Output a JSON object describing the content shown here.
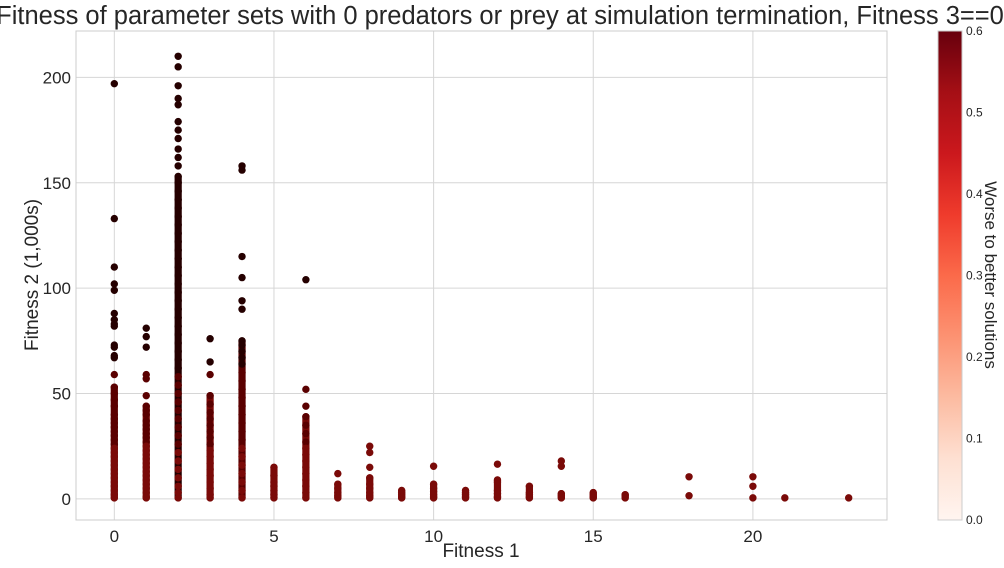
{
  "chart_data": {
    "type": "scatter",
    "title": "Fitness of parameter sets with 0 predators or prey at simulation termination, Fitness 3==0",
    "xlabel": "Fitness 1",
    "ylabel": "Fitness 2 (1,000s)",
    "xlim": [
      -1.2,
      24.2
    ],
    "ylim": [
      -10,
      222
    ],
    "xticks": [
      0,
      5,
      10,
      15,
      20
    ],
    "xtick_labels": [
      "0",
      "5",
      "10",
      "15",
      "20"
    ],
    "yticks": [
      0,
      50,
      100,
      150,
      200
    ],
    "ytick_labels": [
      "0",
      "50",
      "100",
      "150",
      "200"
    ],
    "grid": true,
    "colorbar": {
      "label": "Worse to better solutions",
      "range": [
        0.0,
        0.6
      ],
      "ticks": [
        0.0,
        0.1,
        0.2,
        0.3,
        0.4,
        0.5,
        0.6
      ],
      "tick_labels": [
        "0.0",
        "0.1",
        "0.2",
        "0.3",
        "0.4",
        "0.5",
        "0.6"
      ],
      "colormap": "Reds",
      "colors": [
        "#fff5f0",
        "#fee0d2",
        "#fcbba1",
        "#fc9272",
        "#fb6a4a",
        "#ef3b2c",
        "#cb181d",
        "#a50f15",
        "#67000d"
      ]
    },
    "point_colors": {
      "dark": "#250000",
      "mid": "#5a0000",
      "base": "#7a0a08"
    },
    "series": [
      {
        "x": 0,
        "y": [
          197,
          133,
          110,
          102,
          99,
          88,
          85,
          83,
          82,
          73,
          72,
          68,
          67,
          59,
          53,
          50,
          47,
          44,
          40,
          38,
          36,
          34,
          32,
          30,
          28,
          26,
          24,
          22,
          20,
          18,
          16,
          14,
          12,
          10,
          8,
          6,
          4,
          2,
          0.5
        ]
      },
      {
        "x": 1,
        "y": [
          81,
          77,
          72,
          59,
          57,
          49,
          44,
          42,
          40,
          37,
          35,
          33,
          31,
          29,
          27,
          25,
          23,
          21,
          19,
          17,
          15,
          13,
          11,
          9,
          7,
          5,
          3,
          1,
          0.5
        ]
      },
      {
        "x": 2,
        "y": [
          210,
          205,
          196,
          190,
          187,
          179,
          175,
          171,
          166,
          162,
          158,
          153,
          150,
          146,
          142,
          138,
          134,
          130,
          126,
          122,
          118,
          114,
          110,
          106,
          102,
          98,
          94,
          90,
          86,
          82,
          78,
          74,
          70,
          66,
          62,
          58,
          54,
          50,
          46,
          42,
          38,
          34,
          30,
          26,
          22,
          18,
          14,
          10,
          6,
          3,
          0.5
        ]
      },
      {
        "x": 3,
        "y": [
          76,
          65,
          59,
          49,
          45,
          41,
          38,
          35,
          32,
          29,
          26,
          23,
          20,
          17,
          14,
          11,
          8,
          5,
          2,
          0.5
        ]
      },
      {
        "x": 4,
        "y": [
          158,
          156,
          115,
          105,
          94,
          90,
          75,
          73,
          70,
          67,
          64,
          60,
          56,
          52,
          48,
          44,
          40,
          36,
          32,
          28,
          24,
          20,
          16,
          12,
          8,
          4,
          0.5
        ]
      },
      {
        "x": 5,
        "y": [
          15,
          11,
          8,
          6,
          4,
          2,
          0.5
        ]
      },
      {
        "x": 6,
        "y": [
          104,
          52,
          44,
          39,
          35,
          31,
          27,
          24,
          21,
          18,
          15,
          12,
          9,
          6,
          3,
          0.5
        ]
      },
      {
        "x": 7,
        "y": [
          12,
          7,
          5,
          3,
          1.5,
          0.5
        ]
      },
      {
        "x": 8,
        "y": [
          25,
          22,
          15,
          10,
          7,
          5,
          3,
          1.5,
          0.5
        ]
      },
      {
        "x": 9,
        "y": [
          4,
          3,
          2,
          1,
          0.5
        ]
      },
      {
        "x": 10,
        "y": [
          15.5,
          7,
          5,
          3.5,
          2,
          1,
          0.5
        ]
      },
      {
        "x": 11,
        "y": [
          4,
          3,
          2,
          1,
          0.5
        ]
      },
      {
        "x": 12,
        "y": [
          16.5,
          9,
          8,
          4,
          2.5,
          1,
          0.5
        ]
      },
      {
        "x": 13,
        "y": [
          6,
          3,
          2,
          1,
          0.5
        ]
      },
      {
        "x": 14,
        "y": [
          18,
          15.5,
          2.5,
          1.5,
          0.5
        ]
      },
      {
        "x": 15,
        "y": [
          3,
          2,
          1,
          0.5
        ]
      },
      {
        "x": 16,
        "y": [
          2,
          1.5,
          0.5
        ]
      },
      {
        "x": 18,
        "y": [
          10.5,
          1.5
        ]
      },
      {
        "x": 20,
        "y": [
          10.5,
          6,
          0.5
        ]
      },
      {
        "x": 21,
        "y": [
          0.5
        ]
      },
      {
        "x": 23,
        "y": [
          0.5
        ]
      }
    ]
  }
}
